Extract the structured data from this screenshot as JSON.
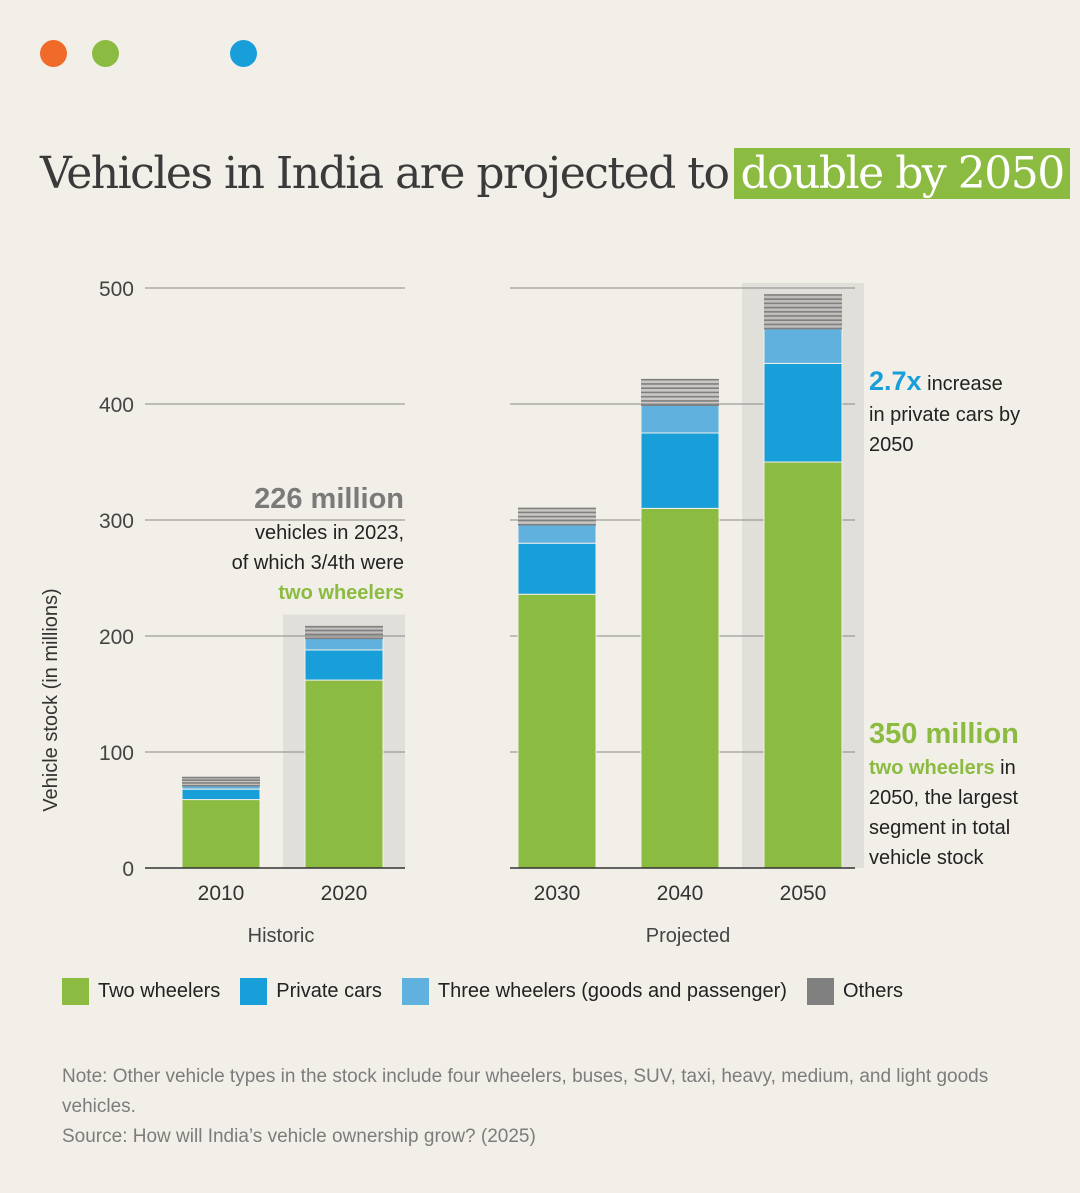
{
  "header": {
    "title_main": "Vehicles in India are projected to",
    "title_highlight": "double by 2050"
  },
  "colors": {
    "two_wheelers": "#8cbb41",
    "private_cars": "#189fd9",
    "three_wheelers": "#61b1de",
    "others": "#808080",
    "highlight_bg": "#d9d9d6",
    "dot_orange": "#f06a2a",
    "dot_green": "#8cbb41",
    "dot_blue": "#189fd9",
    "title_highlight_bg": "#8cbb41"
  },
  "chart_data": {
    "type": "bar",
    "stacked": true,
    "ylabel": "Vehicle stock (in millions)",
    "ylim": [
      0,
      500
    ],
    "yticks": [
      0,
      100,
      200,
      300,
      400,
      500
    ],
    "grid": true,
    "groups": [
      {
        "label": "Historic",
        "categories": [
          "2010",
          "2020"
        ]
      },
      {
        "label": "Projected",
        "categories": [
          "2030",
          "2040",
          "2050"
        ]
      }
    ],
    "categories": [
      "2010",
      "2020",
      "2030",
      "2040",
      "2050"
    ],
    "highlighted_categories": [
      "2020",
      "2050"
    ],
    "series": [
      {
        "name": "Two wheelers",
        "values": [
          59,
          162,
          236,
          310,
          350
        ]
      },
      {
        "name": "Private cars",
        "values": [
          9,
          26,
          44,
          65,
          85
        ]
      },
      {
        "name": "Three wheelers (goods and passenger)",
        "values": [
          3,
          10,
          16,
          24,
          30
        ]
      },
      {
        "name": "Others",
        "values": [
          7,
          10,
          14,
          22,
          29
        ]
      }
    ],
    "legend_position": "bottom",
    "annotations": [
      {
        "big": "226 million",
        "lines": [
          "vehicles in 2023,",
          "of which 3/4th were"
        ],
        "accent": "two wheelers"
      },
      {
        "big": "2.7x",
        "rest": " increase",
        "lines": [
          "in private cars by",
          "2050"
        ]
      },
      {
        "big": "350 million",
        "accent": "two wheelers",
        "accent_rest": " in",
        "lines": [
          "2050, the largest",
          "segment in total",
          "vehicle stock"
        ]
      }
    ]
  },
  "legend": {
    "items": [
      {
        "label": "Two wheelers"
      },
      {
        "label": "Private cars"
      },
      {
        "label": "Three wheelers (goods and passenger)"
      },
      {
        "label": "Others"
      }
    ]
  },
  "note": {
    "text": "Note: Other vehicle types in the stock include four wheelers, buses, SUV, taxi, heavy, medium, and light goods vehicles.",
    "source": "Source:  How will India’s vehicle ownership grow? (2025)"
  }
}
